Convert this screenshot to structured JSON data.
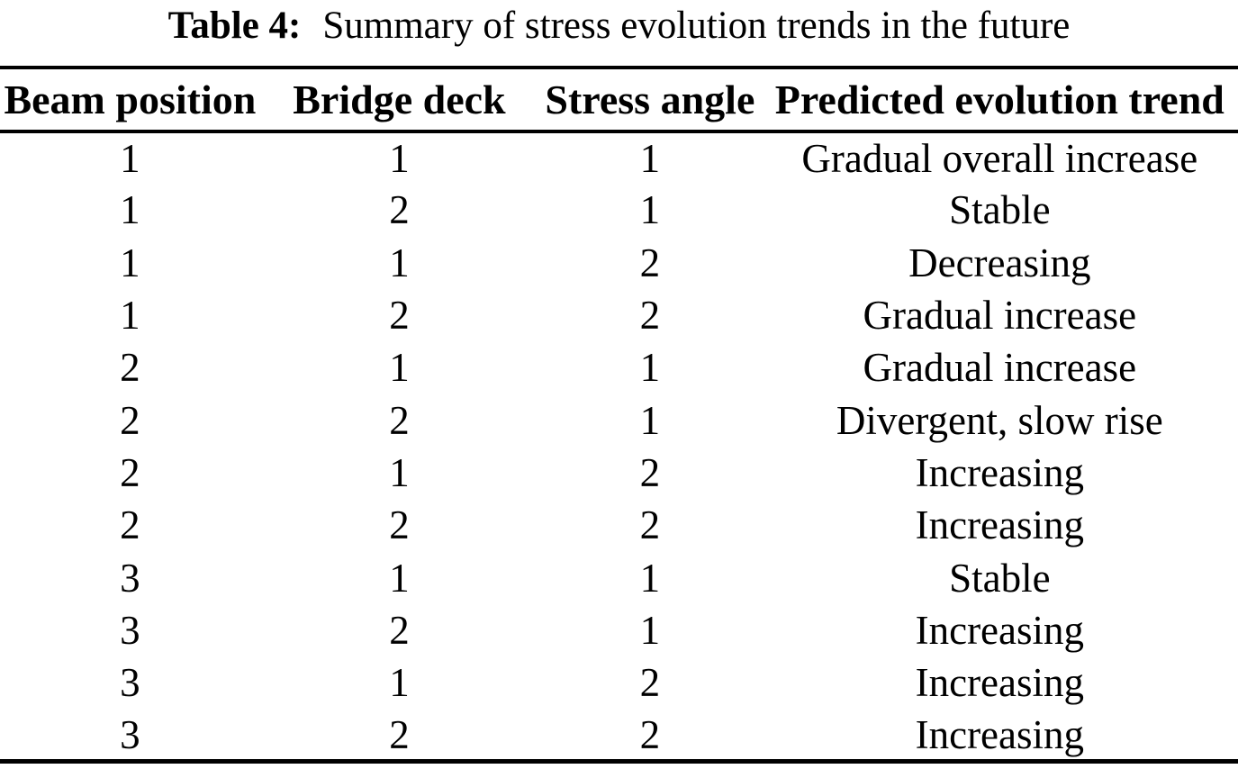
{
  "caption": {
    "label": "Table 4:",
    "text": "Summary of stress evolution trends in the future"
  },
  "table": {
    "columns": [
      "Beam position",
      "Bridge deck",
      "Stress angle",
      "Predicted evolution trend"
    ],
    "rows": [
      [
        "1",
        "1",
        "1",
        "Gradual overall increase"
      ],
      [
        "1",
        "2",
        "1",
        "Stable"
      ],
      [
        "1",
        "1",
        "2",
        "Decreasing"
      ],
      [
        "1",
        "2",
        "2",
        "Gradual increase"
      ],
      [
        "2",
        "1",
        "1",
        "Gradual increase"
      ],
      [
        "2",
        "2",
        "1",
        "Divergent, slow rise"
      ],
      [
        "2",
        "1",
        "2",
        "Increasing"
      ],
      [
        "2",
        "2",
        "2",
        "Increasing"
      ],
      [
        "3",
        "1",
        "1",
        "Stable"
      ],
      [
        "3",
        "2",
        "1",
        "Increasing"
      ],
      [
        "3",
        "1",
        "2",
        "Increasing"
      ],
      [
        "3",
        "2",
        "2",
        "Increasing"
      ]
    ]
  },
  "colors": {
    "background": "#ffffff",
    "text": "#000000",
    "rule": "#000000"
  }
}
